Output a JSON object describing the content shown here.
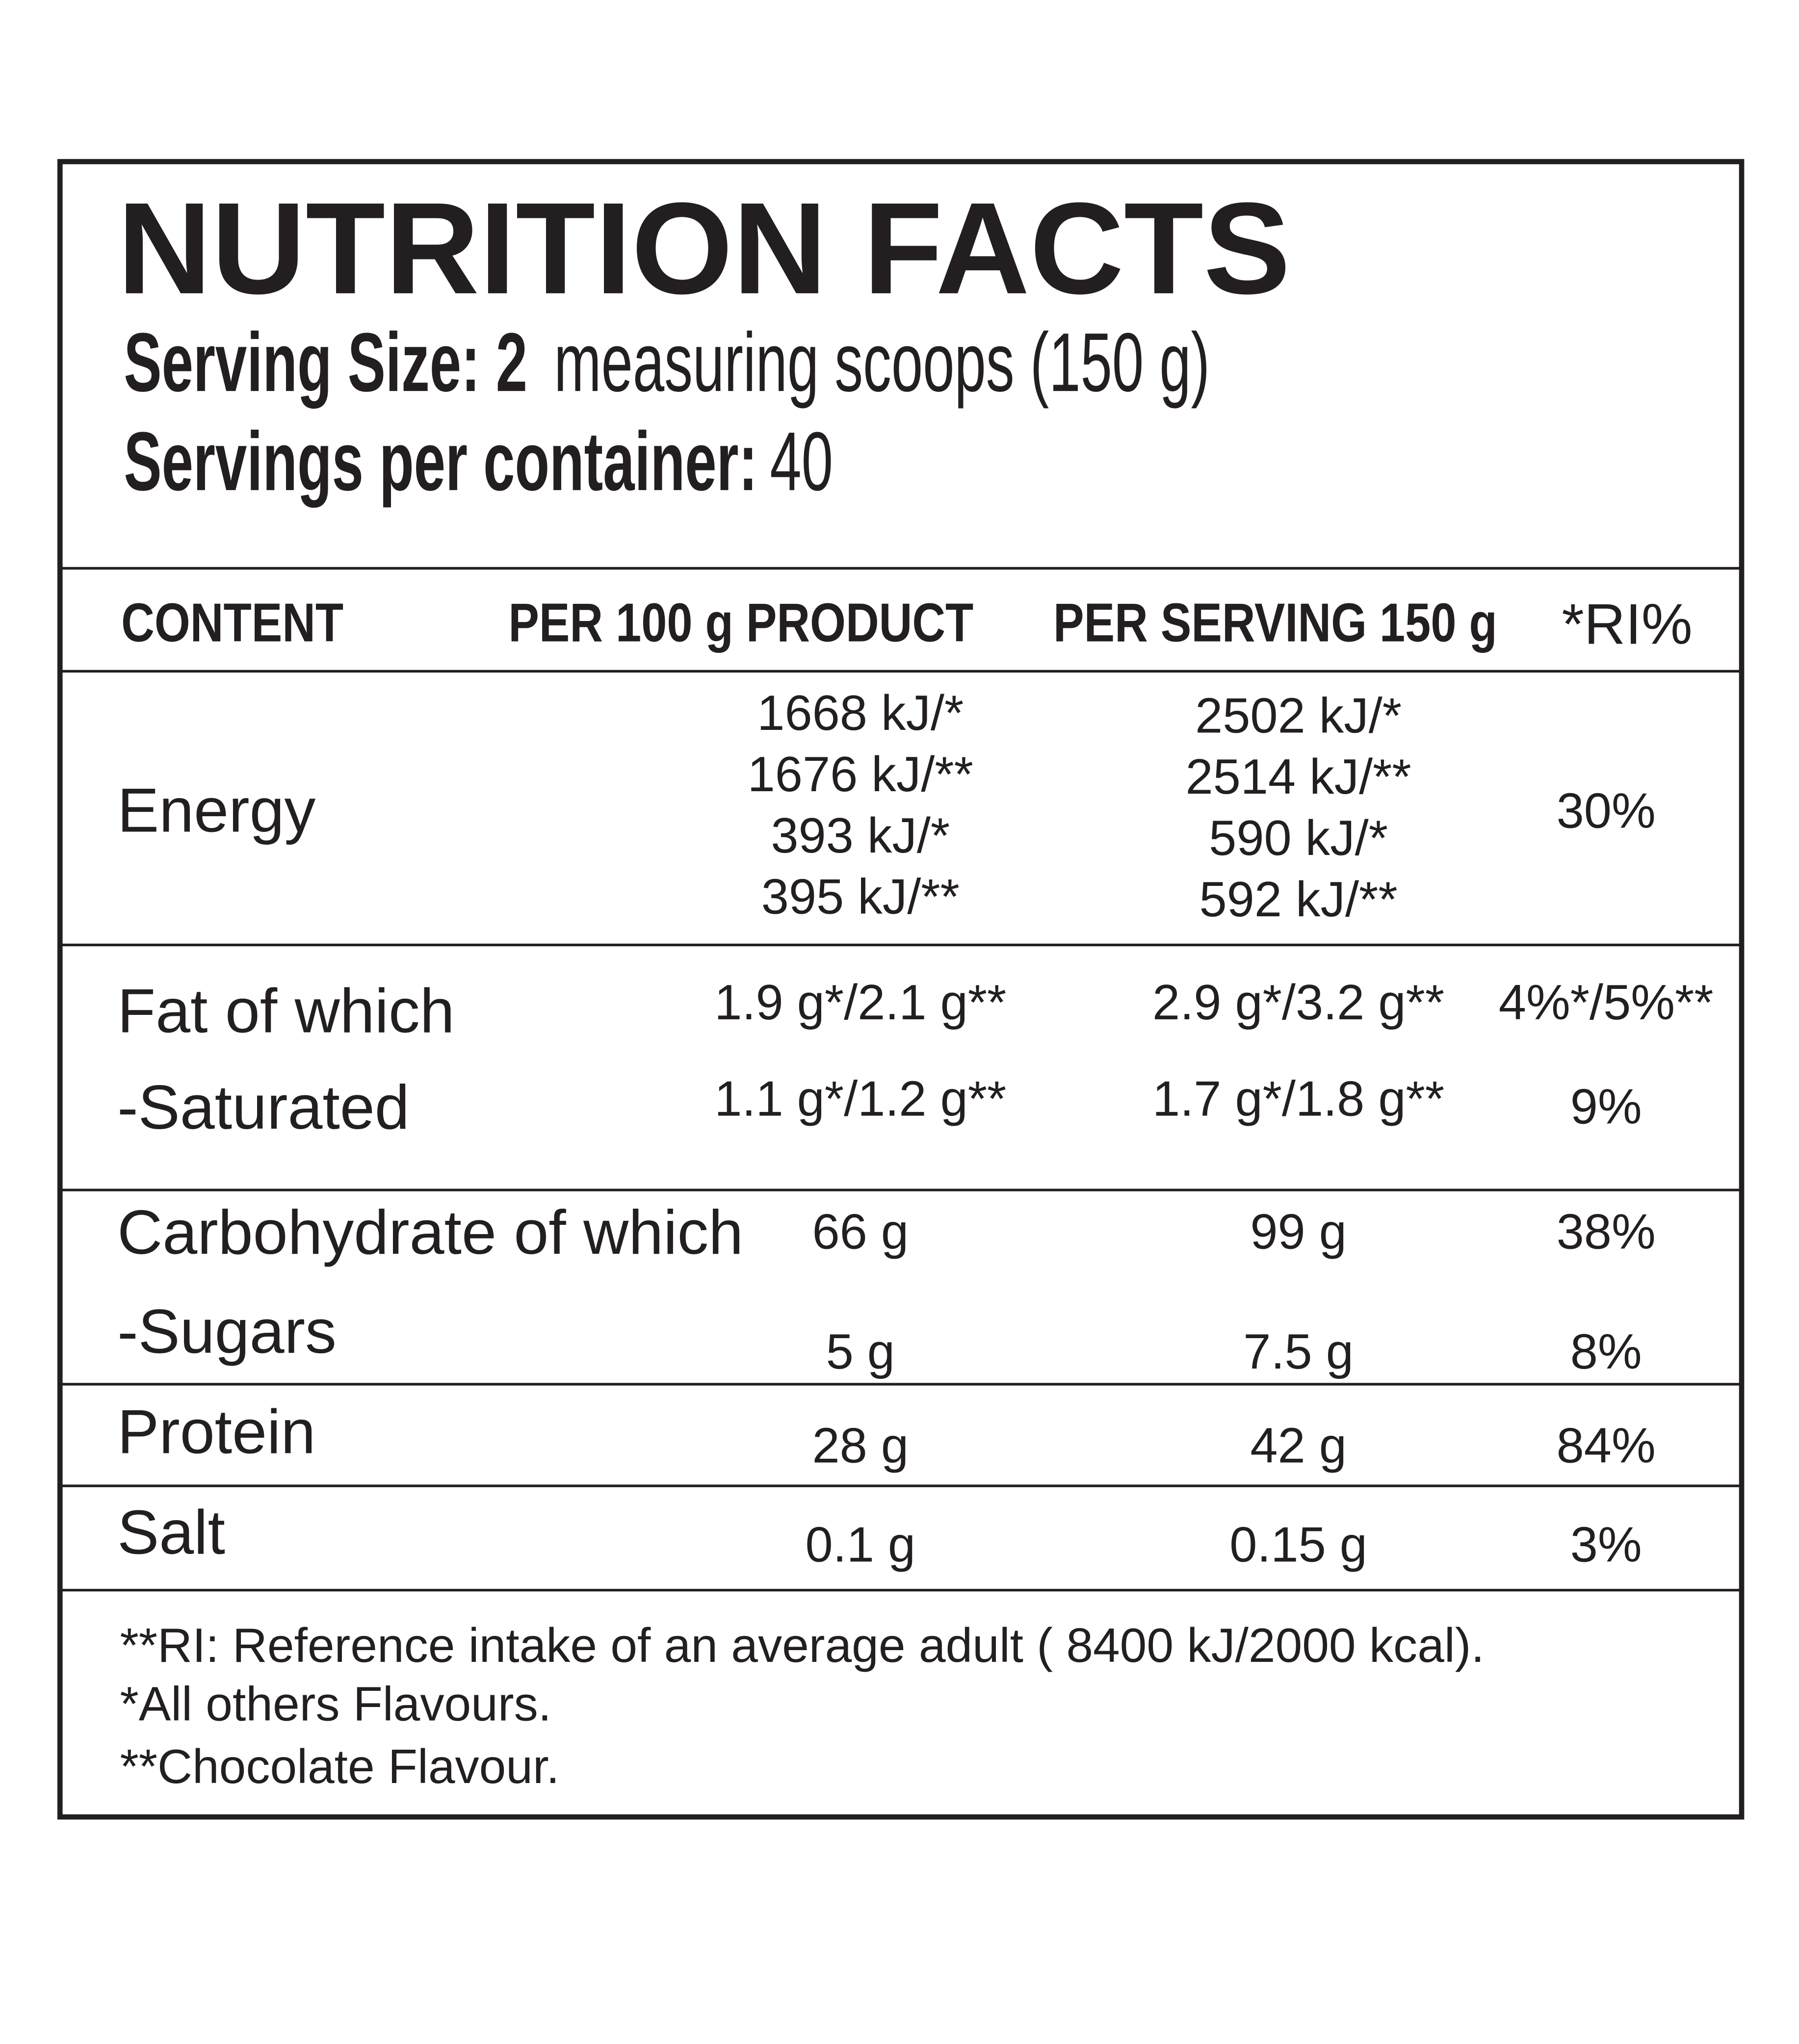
{
  "header": {
    "title": "NUTRITION FACTS",
    "serving_size_label": "Serving Size: 2",
    "serving_size_value": "measuring scoops (150 g)",
    "servings_label": "Servings per container:",
    "servings_value": "40"
  },
  "table": {
    "columns": [
      "CONTENT",
      "PER 100 g PRODUCT",
      "PER SERVING 150 g",
      "*RI%"
    ],
    "rows": [
      {
        "label": "Energy",
        "per_100g": [
          "1668 kJ/*",
          "1676 kJ/**",
          "393 kJ/*",
          "395 kJ/**"
        ],
        "per_serving": [
          "2502 kJ/*",
          "2514 kJ/**",
          "590 kJ/*",
          "592 kJ/**"
        ],
        "ri": "30%"
      },
      {
        "label": "Fat of which",
        "per_100g": [
          "1.9 g*/2.1 g**"
        ],
        "per_serving": [
          "2.9 g*/3.2 g**"
        ],
        "ri": "4%*/5%**"
      },
      {
        "label": "-Saturated",
        "per_100g": [
          "1.1 g*/1.2 g**"
        ],
        "per_serving": [
          "1.7 g*/1.8 g**"
        ],
        "ri": "9%"
      },
      {
        "label": "Carbohydrate of which",
        "per_100g": [
          "66 g"
        ],
        "per_serving": [
          "99 g"
        ],
        "ri": "38%"
      },
      {
        "label": "-Sugars",
        "per_100g": [
          "5 g"
        ],
        "per_serving": [
          "7.5 g"
        ],
        "ri": "8%"
      },
      {
        "label": "Protein",
        "per_100g": [
          "28 g"
        ],
        "per_serving": [
          "42 g"
        ],
        "ri": "84%"
      },
      {
        "label": "Salt",
        "per_100g": [
          "0.1 g"
        ],
        "per_serving": [
          "0.15 g"
        ],
        "ri": "3%"
      }
    ]
  },
  "footnotes": [
    "**RI: Reference intake of an average adult ( 8400 kJ/2000 kcal).",
    "*All others Flavours.",
    "**Chocolate Flavour."
  ]
}
